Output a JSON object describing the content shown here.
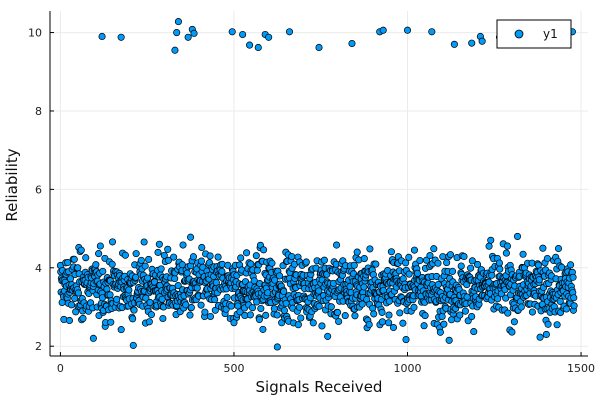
{
  "chart_data": {
    "type": "scatter",
    "title": "",
    "xlabel": "Signals Received",
    "ylabel": "Reliability",
    "xlim": [
      -30,
      1520
    ],
    "ylim": [
      1.75,
      10.55
    ],
    "x_ticks": [
      0,
      500,
      1000,
      1500
    ],
    "y_ticks": [
      2,
      4,
      6,
      8,
      10
    ],
    "grid": true,
    "legend_position": "top-right",
    "colors": {
      "marker": "#009AFA",
      "marker_edge": "#000000",
      "grid": "#EBEBEB",
      "axis": "#000000"
    },
    "series": [
      {
        "name": "y1",
        "distribution": {
          "n_points": 1480,
          "x_range": [
            0,
            1480
          ],
          "main_band_center": 3.5,
          "main_band_spread": 0.42,
          "main_band_min": 2.0,
          "main_band_max": 4.8
        },
        "points": [
          [
            120,
            9.9
          ],
          [
            175,
            9.88
          ],
          [
            330,
            9.55
          ],
          [
            335,
            10.0
          ],
          [
            340,
            10.28
          ],
          [
            368,
            9.88
          ],
          [
            380,
            10.08
          ],
          [
            385,
            9.98
          ],
          [
            495,
            10.02
          ],
          [
            525,
            9.95
          ],
          [
            545,
            9.68
          ],
          [
            570,
            9.62
          ],
          [
            590,
            9.95
          ],
          [
            600,
            9.88
          ],
          [
            660,
            10.02
          ],
          [
            745,
            9.62
          ],
          [
            840,
            9.72
          ],
          [
            920,
            10.02
          ],
          [
            930,
            10.06
          ],
          [
            1000,
            10.06
          ],
          [
            1070,
            10.02
          ],
          [
            1135,
            9.7
          ],
          [
            1185,
            9.73
          ],
          [
            1210,
            9.9
          ],
          [
            1215,
            9.78
          ],
          [
            1265,
            9.88
          ],
          [
            1300,
            9.95
          ],
          [
            1330,
            9.97
          ],
          [
            1360,
            9.92
          ],
          [
            1395,
            9.98
          ],
          [
            1475,
            10.02
          ],
          [
            210,
            2.02
          ],
          [
            625,
            1.98
          ],
          [
            375,
            4.78
          ],
          [
            1235,
            4.55
          ],
          [
            285,
            4.6
          ],
          [
            95,
            2.2
          ],
          [
            1120,
            2.15
          ],
          [
            1400,
            2.3
          ],
          [
            770,
            2.25
          ],
          [
            500,
            2.6
          ],
          [
            60,
            4.45
          ],
          [
            855,
            4.4
          ],
          [
            1020,
            4.45
          ],
          [
            1390,
            4.5
          ]
        ]
      }
    ]
  }
}
